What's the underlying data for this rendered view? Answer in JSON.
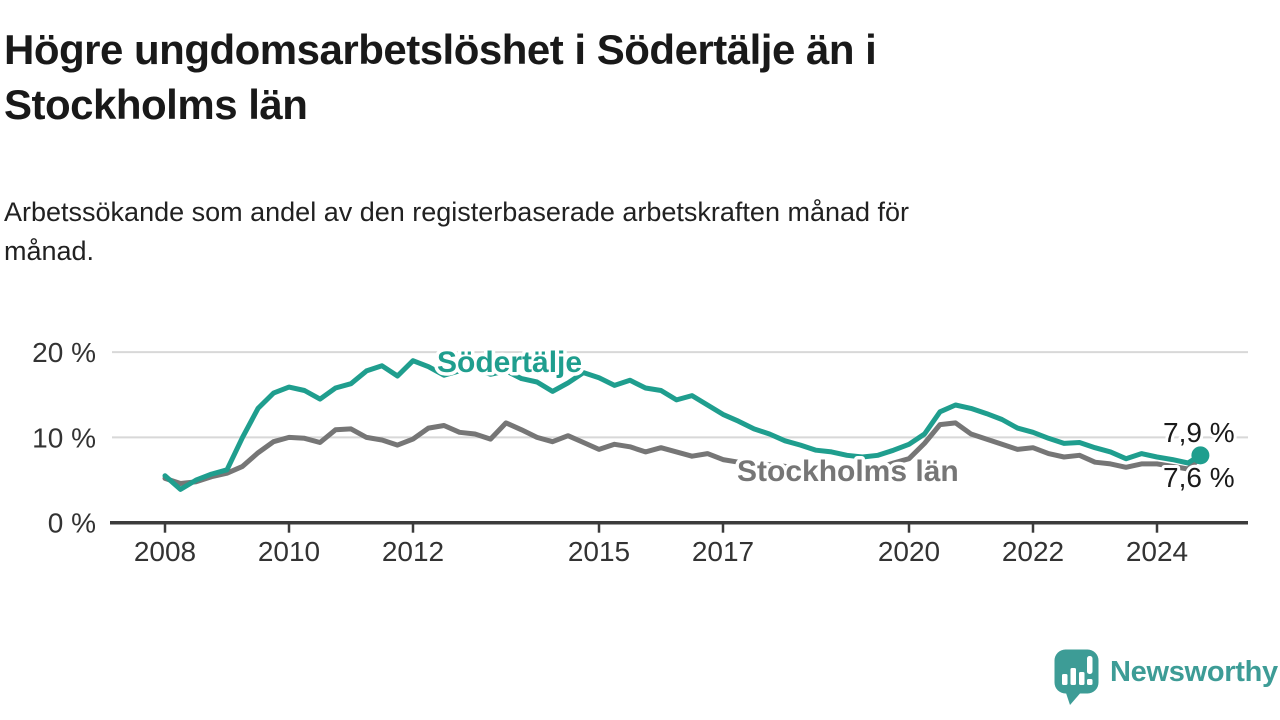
{
  "header": {
    "title_lines": [
      "Högre ungdomsarbetslöshet i Södertälje än i",
      "Stockholms län"
    ],
    "subtitle_lines": [
      "Arbetssökande som andel av den registerbaserade arbetskraften månad för",
      "månad."
    ]
  },
  "chart_data": {
    "type": "line",
    "x_unit": "year_decimal",
    "grid": "horizontal",
    "ylim": [
      0,
      21.5
    ],
    "xlim": [
      2007.1,
      2025.5
    ],
    "x": [
      2008,
      2008.25,
      2008.5,
      2008.75,
      2009,
      2009.25,
      2009.5,
      2009.75,
      2010,
      2010.25,
      2010.5,
      2010.75,
      2011,
      2011.25,
      2011.5,
      2011.75,
      2012,
      2012.25,
      2012.5,
      2012.75,
      2013,
      2013.25,
      2013.5,
      2013.75,
      2014,
      2014.25,
      2014.5,
      2014.75,
      2015,
      2015.25,
      2015.5,
      2015.75,
      2016,
      2016.25,
      2016.5,
      2016.75,
      2017,
      2017.25,
      2017.5,
      2017.75,
      2018,
      2018.25,
      2018.5,
      2018.75,
      2019,
      2019.25,
      2019.5,
      2019.75,
      2020,
      2020.25,
      2020.5,
      2020.75,
      2021,
      2021.25,
      2021.5,
      2021.75,
      2022,
      2022.25,
      2022.5,
      2022.75,
      2023,
      2023.25,
      2023.5,
      2023.75,
      2024,
      2024.25,
      2024.5,
      2024.7
    ],
    "series": [
      {
        "name": "Stockholms län",
        "color": "#767676",
        "end_label": "7,6 %",
        "values": [
          5.2,
          4.6,
          4.8,
          5.4,
          5.8,
          6.6,
          8.2,
          9.5,
          10.0,
          9.9,
          9.4,
          10.9,
          11.0,
          10.0,
          9.7,
          9.1,
          9.8,
          11.1,
          11.4,
          10.6,
          10.4,
          9.8,
          11.7,
          10.9,
          10.0,
          9.5,
          10.2,
          9.4,
          8.6,
          9.2,
          8.9,
          8.3,
          8.8,
          8.3,
          7.8,
          8.1,
          7.4,
          7.1,
          7.0,
          6.8,
          6.6,
          6.4,
          6.2,
          6.3,
          6.2,
          6.1,
          6.4,
          7.0,
          7.5,
          9.3,
          11.5,
          11.7,
          10.4,
          9.8,
          9.2,
          8.6,
          8.8,
          8.1,
          7.7,
          7.9,
          7.1,
          6.9,
          6.5,
          6.9,
          6.9,
          6.6,
          6.3,
          7.6
        ]
      },
      {
        "name": "Södertälje",
        "color": "#1f9e8e",
        "end_label": "7,9 %",
        "values": [
          5.5,
          3.9,
          5.0,
          5.7,
          6.2,
          10.0,
          13.4,
          15.2,
          15.9,
          15.5,
          14.5,
          15.8,
          16.3,
          17.8,
          18.4,
          17.2,
          19.0,
          18.3,
          17.3,
          17.8,
          18.1,
          17.4,
          17.8,
          16.9,
          16.5,
          15.4,
          16.4,
          17.6,
          17.0,
          16.1,
          16.7,
          15.8,
          15.5,
          14.4,
          14.9,
          13.8,
          12.7,
          11.9,
          11.0,
          10.4,
          9.6,
          9.1,
          8.5,
          8.3,
          7.9,
          7.7,
          7.9,
          8.5,
          9.2,
          10.4,
          13.0,
          13.8,
          13.4,
          12.8,
          12.1,
          11.1,
          10.6,
          9.9,
          9.3,
          9.4,
          8.8,
          8.3,
          7.5,
          8.1,
          7.7,
          7.4,
          7.0,
          7.9
        ]
      }
    ],
    "y_ticks": [
      {
        "value": 20,
        "label": "20 %"
      },
      {
        "value": 10,
        "label": "10 %"
      },
      {
        "value": 0,
        "label": "0 %"
      }
    ],
    "x_ticks": [
      {
        "value": 2008,
        "label": "2008"
      },
      {
        "value": 2010,
        "label": "2010"
      },
      {
        "value": 2012,
        "label": "2012"
      },
      {
        "value": 2015,
        "label": "2015"
      },
      {
        "value": 2017,
        "label": "2017"
      },
      {
        "value": 2020,
        "label": "2020"
      },
      {
        "value": 2022,
        "label": "2022"
      },
      {
        "value": 2024,
        "label": "2024"
      }
    ],
    "colors": {
      "axis": "#3b3b3b",
      "gridline": "#d8d8d8",
      "tick_label": "#333333",
      "end_label": "#1a1a1a"
    }
  },
  "footer": {
    "brand": "Newsworthy",
    "logo_color": "#3d9c96",
    "logo_icon": "bar-chart-speech-bubble"
  }
}
